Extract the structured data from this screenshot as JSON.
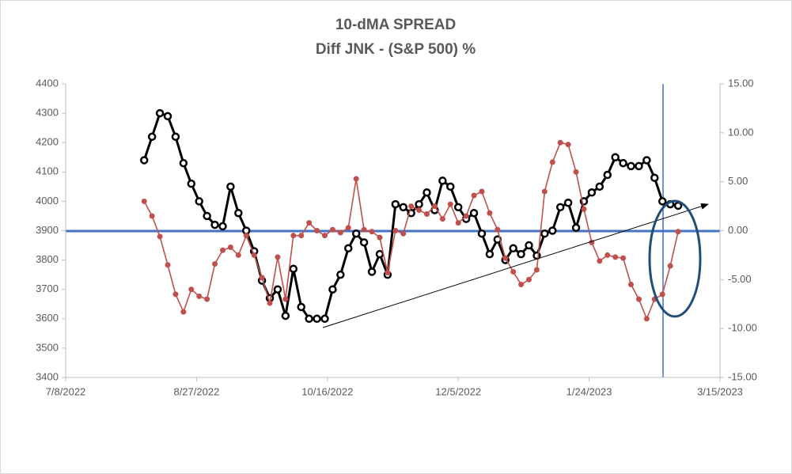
{
  "chart_data": {
    "type": "line",
    "title": "10-dMA SPREAD",
    "subtitle": "Diff JNK - (S&P 500) %",
    "x": [
      "8/7/2022",
      "8/10/2022",
      "8/13/2022",
      "8/16/2022",
      "8/19/2022",
      "8/22/2022",
      "8/25/2022",
      "8/28/2022",
      "8/31/2022",
      "9/3/2022",
      "9/6/2022",
      "9/9/2022",
      "9/12/2022",
      "9/15/2022",
      "9/18/2022",
      "9/21/2022",
      "9/24/2022",
      "9/27/2022",
      "9/30/2022",
      "10/3/2022",
      "10/6/2022",
      "10/9/2022",
      "10/12/2022",
      "10/15/2022",
      "10/18/2022",
      "10/21/2022",
      "10/24/2022",
      "10/27/2022",
      "10/30/2022",
      "11/2/2022",
      "11/5/2022",
      "11/8/2022",
      "11/11/2022",
      "11/14/2022",
      "11/17/2022",
      "11/20/2022",
      "11/23/2022",
      "11/26/2022",
      "11/29/2022",
      "12/2/2022",
      "12/5/2022",
      "12/8/2022",
      "12/11/2022",
      "12/14/2022",
      "12/17/2022",
      "12/20/2022",
      "12/23/2022",
      "12/26/2022",
      "12/29/2022",
      "1/1/2023",
      "1/4/2023",
      "1/7/2023",
      "1/10/2023",
      "1/13/2023",
      "1/16/2023",
      "1/19/2023",
      "1/22/2023",
      "1/25/2023",
      "1/28/2023",
      "1/31/2023",
      "2/3/2023",
      "2/6/2023",
      "2/9/2023",
      "2/12/2023",
      "2/15/2023",
      "2/18/2023",
      "2/21/2023",
      "2/24/2023",
      "2/27/2023"
    ],
    "series": [
      {
        "color": "#000000",
        "axis": "y",
        "values": [
          4140,
          4220,
          4300,
          4290,
          4220,
          4130,
          4060,
          4000,
          3950,
          3920,
          3915,
          4050,
          3960,
          3900,
          3830,
          3730,
          3670,
          3700,
          3610,
          3770,
          3640,
          3600,
          3600,
          3600,
          3700,
          3750,
          3840,
          3890,
          3860,
          3760,
          3820,
          3750,
          3990,
          3980,
          3960,
          3990,
          4030,
          3970,
          4070,
          4050,
          3980,
          3940,
          3960,
          3890,
          3820,
          3870,
          3800,
          3840,
          3820,
          3850,
          3815,
          3890,
          3900,
          3980,
          3995,
          3910,
          4000,
          4030,
          4050,
          4090,
          4150,
          4130,
          4120,
          4120,
          4140,
          4080,
          4000,
          3990,
          3985
        ]
      },
      {
        "color": "#c0504d",
        "axis": "y2",
        "values": [
          3.0,
          1.5,
          -0.6,
          -3.5,
          -6.5,
          -8.3,
          -6.0,
          -6.7,
          -7.0,
          -3.4,
          -2.0,
          -1.7,
          -2.5,
          -0.5,
          -2.5,
          -4.8,
          -7.4,
          -2.7,
          -7.0,
          -0.5,
          -0.5,
          0.8,
          0.0,
          -0.5,
          0.1,
          -0.2,
          0.3,
          5.3,
          0.1,
          -0.1,
          -0.7,
          -4.3,
          0.0,
          -0.3,
          2.5,
          2.1,
          1.7,
          2.5,
          1.2,
          2.7,
          0.8,
          1.5,
          3.6,
          4.0,
          1.8,
          0.1,
          -2.8,
          -4.2,
          -5.5,
          -5.0,
          -4.0,
          4.0,
          7.0,
          9.0,
          8.8,
          6.0,
          2.2,
          -1.2,
          -3.1,
          -2.5,
          -2.7,
          -2.8,
          -5.5,
          -7.0,
          -9.0,
          -7.0,
          -6.5,
          -3.6,
          -0.1
        ]
      }
    ],
    "xlim": [
      "7/8/2022",
      "3/15/2023"
    ],
    "xticks": [
      "7/8/2022",
      "8/27/2022",
      "10/16/2022",
      "12/5/2022",
      "1/24/2023",
      "3/15/2023"
    ],
    "ylim": [
      3400,
      4400
    ],
    "yticks": [
      3400,
      3500,
      3600,
      3700,
      3800,
      3900,
      4000,
      4100,
      4200,
      4300,
      4400
    ],
    "y2lim": [
      -15,
      15
    ],
    "y2ticks": [
      {
        "value": -15,
        "label": "-15.00"
      },
      {
        "value": -10,
        "label": "-10.00"
      },
      {
        "value": -5,
        "label": "-5.00"
      },
      {
        "value": 0,
        "label": "0.00"
      },
      {
        "value": 5,
        "label": "5.00"
      },
      {
        "value": 10,
        "label": "10.00"
      },
      {
        "value": 15,
        "label": "15.00"
      }
    ],
    "grid": false
  }
}
